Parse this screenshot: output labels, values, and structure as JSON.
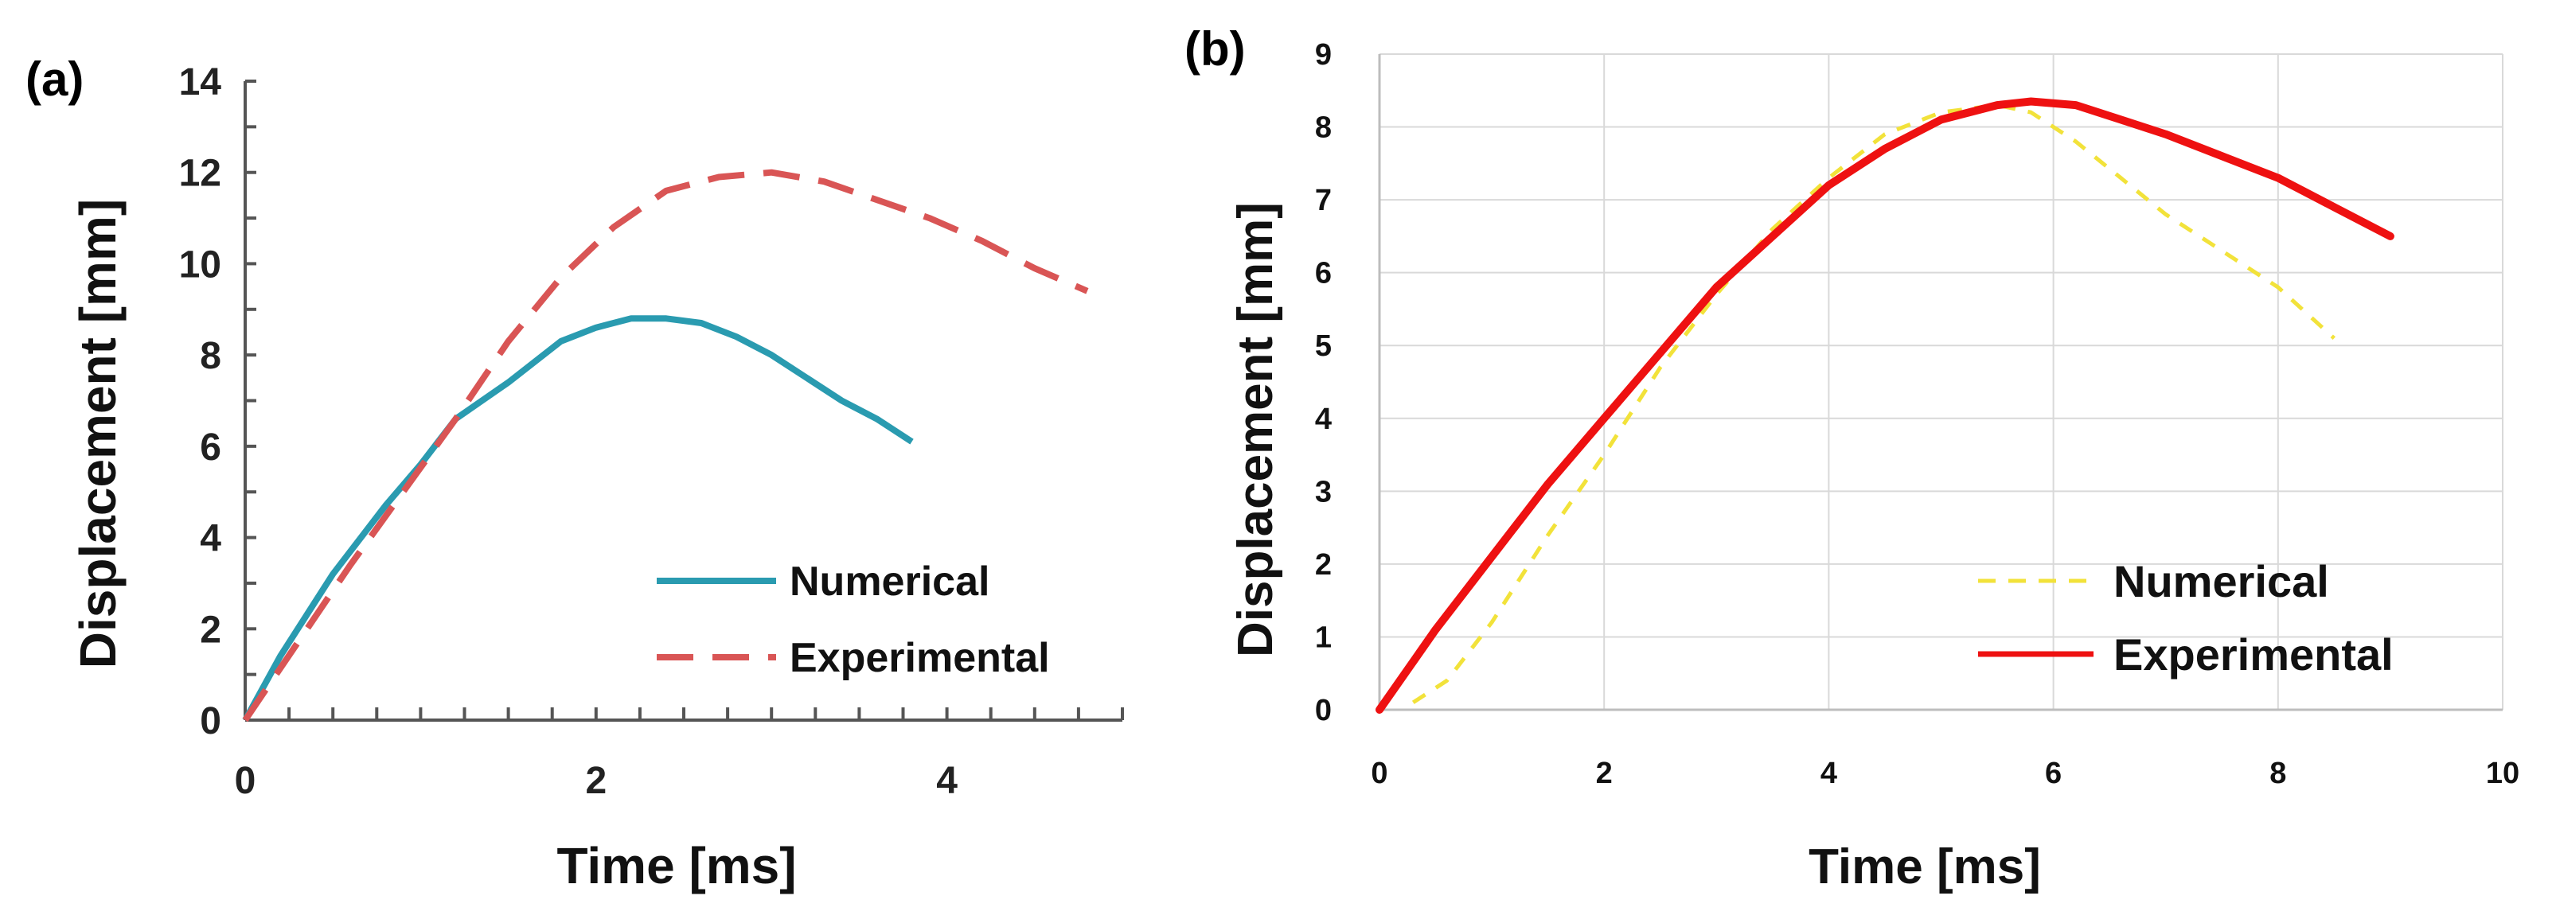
{
  "figure": {
    "panel_a_label": "(a)",
    "panel_b_label": "(b)"
  },
  "chart_data": [
    {
      "type": "line",
      "panel": "(a)",
      "title": "",
      "xlabel": "Time [ms]",
      "ylabel": "Displacement [mm]",
      "xlim": [
        0,
        5
      ],
      "ylim": [
        0,
        14
      ],
      "xticks": [
        0,
        2,
        4
      ],
      "yticks": [
        0,
        2,
        4,
        6,
        8,
        10,
        12,
        14
      ],
      "grid": false,
      "legend_position": "bottom-right",
      "series": [
        {
          "name": "Numerical",
          "color": "#2a9bb0",
          "style": "solid",
          "x": [
            0,
            0.2,
            0.5,
            0.8,
            1.0,
            1.2,
            1.5,
            1.8,
            2.0,
            2.2,
            2.4,
            2.6,
            2.8,
            3.0,
            3.2,
            3.4,
            3.6,
            3.8
          ],
          "y": [
            0,
            1.4,
            3.2,
            4.7,
            5.6,
            6.6,
            7.4,
            8.3,
            8.6,
            8.8,
            8.8,
            8.7,
            8.4,
            8.0,
            7.5,
            7.0,
            6.6,
            6.1
          ]
        },
        {
          "name": "Experimental",
          "color": "#d95555",
          "style": "dashed",
          "x": [
            0,
            0.3,
            0.6,
            0.9,
            1.2,
            1.5,
            1.8,
            2.1,
            2.4,
            2.7,
            3.0,
            3.3,
            3.6,
            3.9,
            4.2,
            4.5,
            4.8
          ],
          "y": [
            0,
            1.7,
            3.4,
            5.0,
            6.6,
            8.3,
            9.7,
            10.8,
            11.6,
            11.9,
            12.0,
            11.8,
            11.4,
            11.0,
            10.5,
            9.9,
            9.4
          ]
        }
      ]
    },
    {
      "type": "line",
      "panel": "(b)",
      "title": "",
      "xlabel": "Time [ms]",
      "ylabel": "Displacement [mm]",
      "xlim": [
        0,
        10
      ],
      "ylim": [
        0,
        9
      ],
      "xticks": [
        0,
        2,
        4,
        6,
        8,
        10
      ],
      "yticks": [
        0,
        1,
        2,
        3,
        4,
        5,
        6,
        7,
        8,
        9
      ],
      "grid": true,
      "legend_position": "bottom-right",
      "series": [
        {
          "name": "Numerical",
          "color": "#f2e23a",
          "style": "dashed",
          "x": [
            0.3,
            0.6,
            1.0,
            1.5,
            2.0,
            2.5,
            3.0,
            3.5,
            4.0,
            4.5,
            5.0,
            5.5,
            5.8,
            6.2,
            6.6,
            7.0,
            7.5,
            8.0,
            8.5
          ],
          "y": [
            0.1,
            0.4,
            1.2,
            2.4,
            3.5,
            4.7,
            5.7,
            6.6,
            7.3,
            7.9,
            8.2,
            8.3,
            8.2,
            7.8,
            7.3,
            6.8,
            6.3,
            5.8,
            5.1
          ]
        },
        {
          "name": "Experimental",
          "color": "#ee1111",
          "style": "solid",
          "x": [
            0,
            0.5,
            1.0,
            1.5,
            2.0,
            2.5,
            3.0,
            3.5,
            4.0,
            4.5,
            5.0,
            5.5,
            5.8,
            6.2,
            6.6,
            7.0,
            7.5,
            8.0,
            8.5,
            9.0
          ],
          "y": [
            0,
            1.1,
            2.1,
            3.1,
            4.0,
            4.9,
            5.8,
            6.5,
            7.2,
            7.7,
            8.1,
            8.3,
            8.35,
            8.3,
            8.1,
            7.9,
            7.6,
            7.3,
            6.9,
            6.5
          ]
        }
      ]
    }
  ]
}
